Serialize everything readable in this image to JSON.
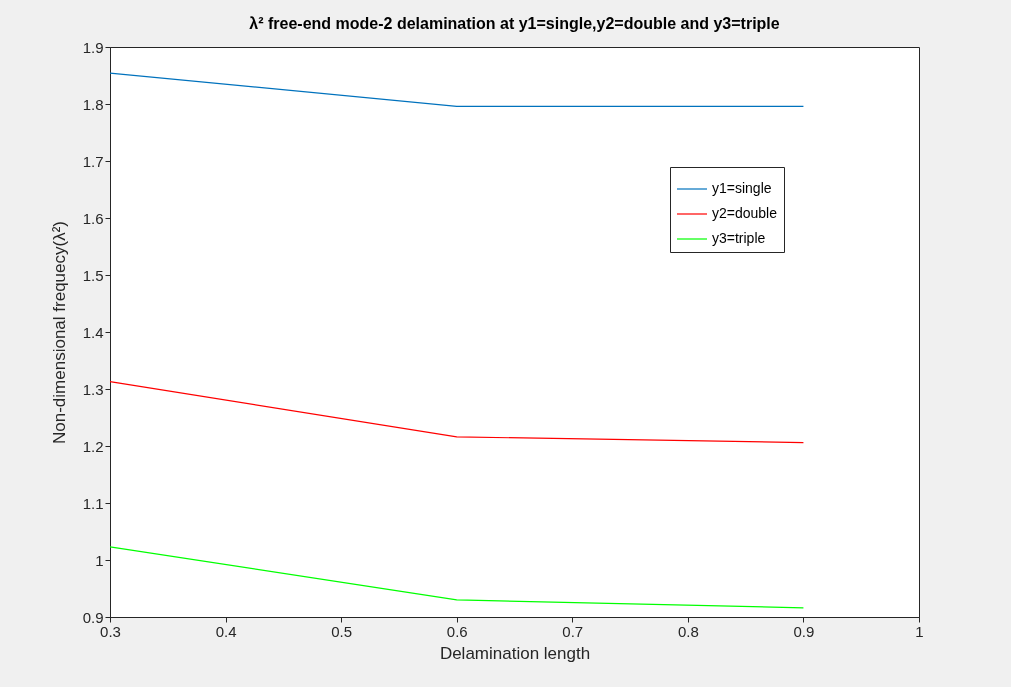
{
  "chart_data": {
    "type": "line",
    "title": "λ² free-end mode-2 delamination at y1=single,y2=double and y3=triple",
    "xlabel": "Delamination length",
    "ylabel": "Non-dimensional frequecy(λ²)",
    "x": [
      0.3,
      0.6,
      0.9
    ],
    "series": [
      {
        "name": "y1=single",
        "color": "#0072bd",
        "values": [
          1.854,
          1.796,
          1.796
        ]
      },
      {
        "name": "y2=double",
        "color": "#ff0000",
        "values": [
          1.313,
          1.216,
          1.206
        ]
      },
      {
        "name": "y3=triple",
        "color": "#00ff00",
        "values": [
          1.023,
          0.93,
          0.916
        ]
      }
    ],
    "xlim": [
      0.3,
      1
    ],
    "xticks": [
      0.3,
      0.4,
      0.5,
      0.6,
      0.7,
      0.8,
      0.9,
      1
    ],
    "ylim": [
      0.9,
      1.9
    ],
    "yticks": [
      0.9,
      1,
      1.1,
      1.2,
      1.3,
      1.4,
      1.5,
      1.6,
      1.7,
      1.8,
      1.9
    ],
    "legend": "top right",
    "grid": false,
    "marker": "none",
    "line_style": "solid"
  }
}
